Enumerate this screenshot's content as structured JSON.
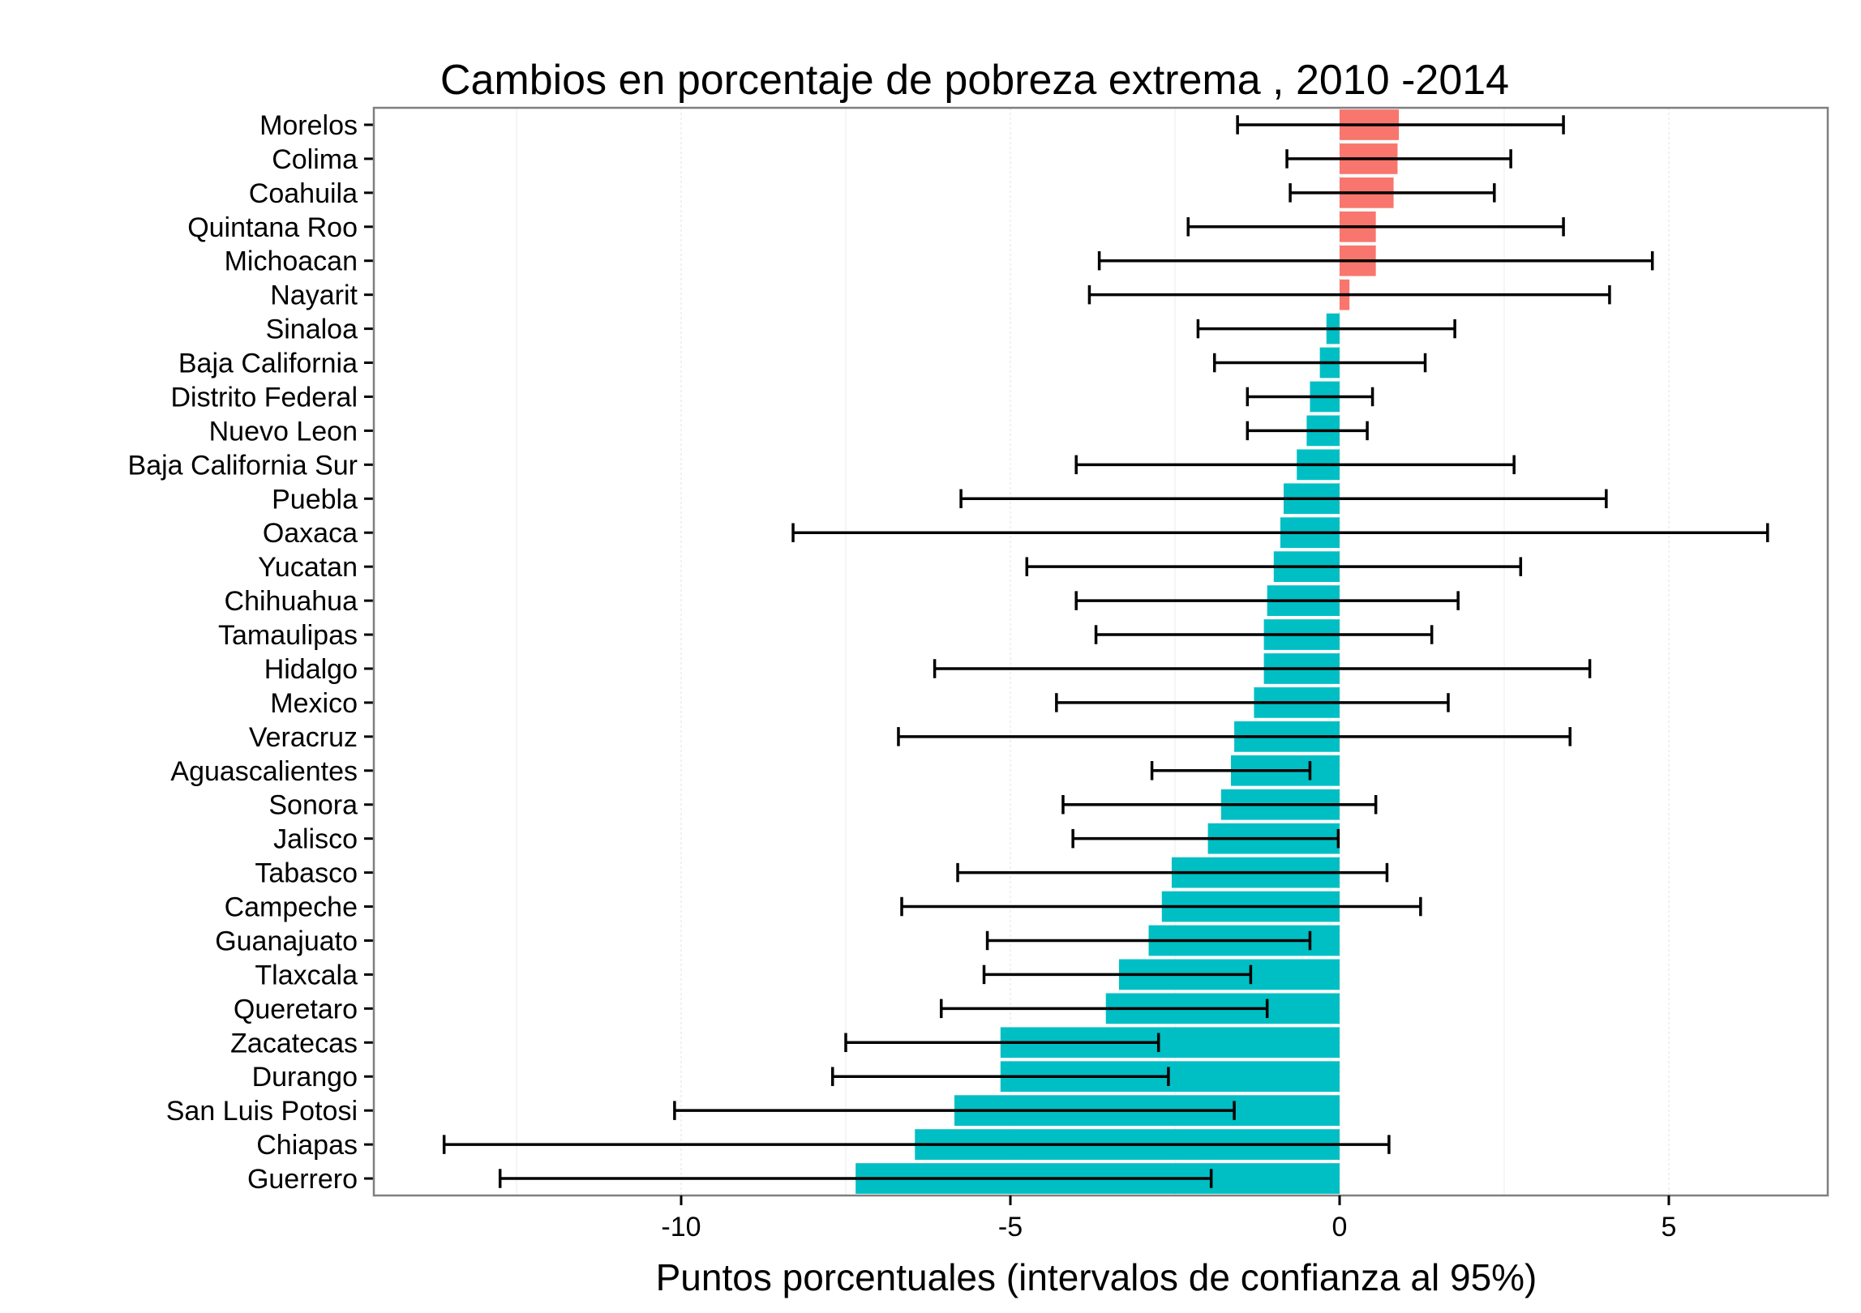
{
  "chart_data": {
    "type": "bar",
    "orientation": "horizontal",
    "title": "Cambios en porcentaje de pobreza extrema , 2010 -2014",
    "xlabel": "Puntos porcentuales (intervalos de confianza al 95%)",
    "ylabel": "",
    "xlim": [
      -14.6,
      7.5
    ],
    "xticks": [
      -10,
      -5,
      0,
      5
    ],
    "xtick_labels": [
      "-10",
      "-5",
      "0",
      "5"
    ],
    "grid": true,
    "colors": {
      "positive": "#F8766D",
      "negative": "#00BFC4",
      "errorbar": "#000000",
      "panel_border": "#7f7f7f",
      "grid": "#ebebeb"
    },
    "series": [
      {
        "name": "Morelos",
        "value": 0.9,
        "low": -1.55,
        "high": 3.4
      },
      {
        "name": "Colima",
        "value": 0.88,
        "low": -0.8,
        "high": 2.6
      },
      {
        "name": "Coahuila",
        "value": 0.82,
        "low": -0.75,
        "high": 2.35
      },
      {
        "name": "Quintana Roo",
        "value": 0.55,
        "low": -2.3,
        "high": 3.4
      },
      {
        "name": "Michoacan",
        "value": 0.55,
        "low": -3.65,
        "high": 4.75
      },
      {
        "name": "Nayarit",
        "value": 0.15,
        "low": -3.8,
        "high": 4.1
      },
      {
        "name": "Sinaloa",
        "value": -0.2,
        "low": -2.15,
        "high": 1.75
      },
      {
        "name": "Baja California",
        "value": -0.3,
        "low": -1.9,
        "high": 1.3
      },
      {
        "name": "Distrito Federal",
        "value": -0.45,
        "low": -1.4,
        "high": 0.5
      },
      {
        "name": "Nuevo Leon",
        "value": -0.5,
        "low": -1.4,
        "high": 0.42
      },
      {
        "name": "Baja California Sur",
        "value": -0.65,
        "low": -4.0,
        "high": 2.65
      },
      {
        "name": "Puebla",
        "value": -0.85,
        "low": -5.75,
        "high": 4.05
      },
      {
        "name": "Oaxaca",
        "value": -0.9,
        "low": -8.3,
        "high": 6.5
      },
      {
        "name": "Yucatan",
        "value": -1.0,
        "low": -4.75,
        "high": 2.75
      },
      {
        "name": "Chihuahua",
        "value": -1.1,
        "low": -4.0,
        "high": 1.8
      },
      {
        "name": "Tamaulipas",
        "value": -1.15,
        "low": -3.7,
        "high": 1.4
      },
      {
        "name": "Hidalgo",
        "value": -1.15,
        "low": -6.15,
        "high": 3.8
      },
      {
        "name": "Mexico",
        "value": -1.3,
        "low": -4.3,
        "high": 1.65
      },
      {
        "name": "Veracruz",
        "value": -1.6,
        "low": -6.7,
        "high": 3.5
      },
      {
        "name": "Aguascalientes",
        "value": -1.65,
        "low": -2.85,
        "high": -0.45
      },
      {
        "name": "Sonora",
        "value": -1.8,
        "low": -4.2,
        "high": 0.55
      },
      {
        "name": "Jalisco",
        "value": -2.0,
        "low": -4.05,
        "high": -0.02
      },
      {
        "name": "Tabasco",
        "value": -2.55,
        "low": -5.8,
        "high": 0.72
      },
      {
        "name": "Campeche",
        "value": -2.7,
        "low": -6.65,
        "high": 1.23
      },
      {
        "name": "Guanajuato",
        "value": -2.9,
        "low": -5.35,
        "high": -0.45
      },
      {
        "name": "Tlaxcala",
        "value": -3.35,
        "low": -5.4,
        "high": -1.35
      },
      {
        "name": "Queretaro",
        "value": -3.55,
        "low": -6.05,
        "high": -1.1
      },
      {
        "name": "Zacatecas",
        "value": -5.15,
        "low": -7.5,
        "high": -2.75
      },
      {
        "name": "Durango",
        "value": -5.15,
        "low": -7.7,
        "high": -2.6
      },
      {
        "name": "San Luis Potosi",
        "value": -5.85,
        "low": -10.1,
        "high": -1.6
      },
      {
        "name": "Chiapas",
        "value": -6.45,
        "low": -13.6,
        "high": 0.75
      },
      {
        "name": "Guerrero",
        "value": -7.35,
        "low": -12.75,
        "high": -1.95
      }
    ]
  }
}
